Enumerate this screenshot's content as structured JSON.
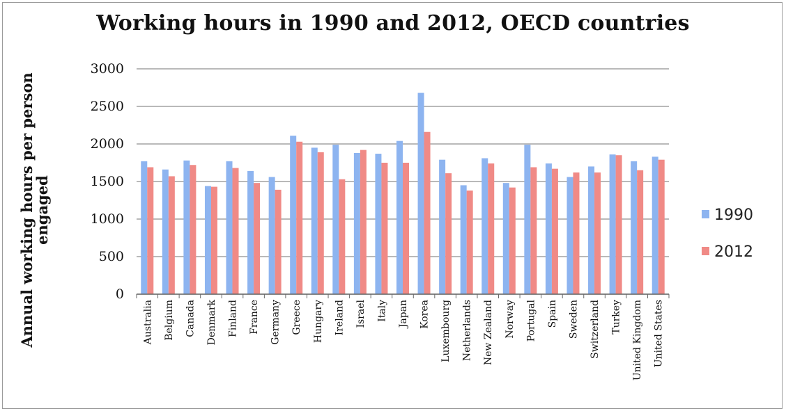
{
  "chart_data": {
    "type": "bar",
    "title": "Working hours in 1990 and 2012, OECD countries",
    "ylabel": "Annual working hours per person engaged",
    "xlabel": "",
    "ylim": [
      0,
      3000
    ],
    "yticks": [
      0,
      500,
      1000,
      1500,
      2000,
      2500,
      3000
    ],
    "grid": true,
    "legend_position": "right",
    "categories": [
      "Australia",
      "Belgium",
      "Canada",
      "Denmark",
      "Finland",
      "France",
      "Germany",
      "Greece",
      "Hungary",
      "Ireland",
      "Israel",
      "Italy",
      "Japan",
      "Korea",
      "Luxembourg",
      "Netherlands",
      "New Zealand",
      "Norway",
      "Portugal",
      "Spain",
      "Sweden",
      "Switzerland",
      "Turkey",
      "United Kingdom",
      "United States"
    ],
    "series": [
      {
        "name": "1990",
        "color": "#8db4f0",
        "values": [
          1770,
          1660,
          1780,
          1440,
          1770,
          1640,
          1560,
          2110,
          1950,
          1990,
          1880,
          1870,
          2040,
          2680,
          1790,
          1450,
          1810,
          1480,
          1990,
          1740,
          1560,
          1700,
          1860,
          1770,
          1830
        ]
      },
      {
        "name": "2012",
        "color": "#f08a86",
        "values": [
          1690,
          1570,
          1720,
          1430,
          1680,
          1480,
          1390,
          2030,
          1890,
          1530,
          1920,
          1750,
          1750,
          2160,
          1610,
          1380,
          1740,
          1420,
          1690,
          1670,
          1620,
          1620,
          1850,
          1650,
          1790
        ]
      }
    ]
  }
}
